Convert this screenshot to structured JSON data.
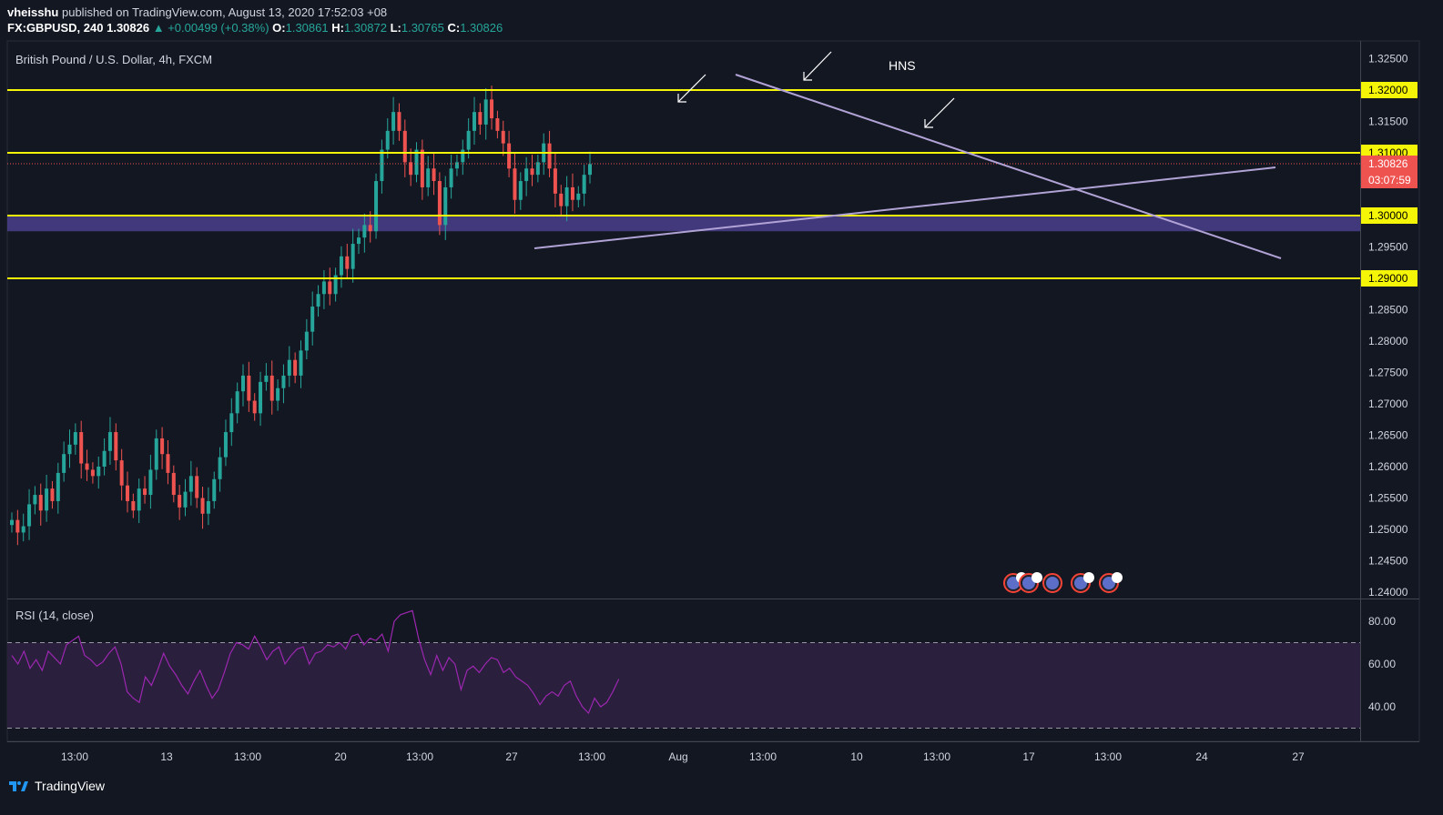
{
  "header": {
    "publisher": "vheisshu",
    "published_text": "published on TradingView.com, August 13, 2020 17:52:03 +08",
    "symbol": "FX:GBPUSD, 240",
    "last": "1.30826",
    "change": "▲ +0.00499 (+0.38%)",
    "o_label": "O:",
    "o": "1.30861",
    "h_label": "H:",
    "h": "1.30872",
    "l_label": "L:",
    "l": "1.30765",
    "c_label": "C:",
    "c": "1.30826"
  },
  "legend": "British Pound / U.S. Dollar, 4h, FXCM",
  "rsi_legend": "RSI (14, close)",
  "annotation": "HNS",
  "footer": {
    "brand": "TradingView"
  },
  "colors": {
    "bg": "#131722",
    "up": "#26a69a",
    "down": "#ef5350",
    "level": "#f5f507",
    "trend": "#b2a3d6",
    "zone": "#4a3f8c",
    "rsi_line": "#9c27b0",
    "rsi_band": "#2a1f3d"
  },
  "chart_data": [
    {
      "type": "candlestick",
      "title": "British Pound / U.S. Dollar, 4h, FXCM",
      "ylim": [
        1.2375,
        1.3275
      ],
      "y_ticks": [
        "1.32500",
        "1.32000",
        "1.31500",
        "1.31000",
        "1.30500",
        "1.30000",
        "1.29500",
        "1.29000",
        "1.28500",
        "1.28000",
        "1.27500",
        "1.27000",
        "1.26500",
        "1.26000",
        "1.25500",
        "1.25000",
        "1.24500",
        "1.24000"
      ],
      "x_ticks": [
        "13:00",
        "13",
        "13:00",
        "20",
        "13:00",
        "27",
        "13:00",
        "Aug",
        "13:00",
        "10",
        "13:00",
        "17",
        "13:00",
        "24",
        "27"
      ],
      "levels": [
        1.32,
        1.31,
        1.3,
        1.29
      ],
      "level_labels": [
        "1.32000",
        "1.31000",
        "1.30000",
        "1.29000"
      ],
      "last_price_label": "1.30826",
      "countdown": "03:07:59",
      "zone": [
        1.2975,
        1.3
      ],
      "close_path": [
        1.2515,
        1.2495,
        1.2505,
        1.254,
        1.2555,
        1.253,
        1.2565,
        1.2545,
        1.259,
        1.262,
        1.2635,
        1.2655,
        1.2605,
        1.2595,
        1.2585,
        1.26,
        1.2625,
        1.2655,
        1.261,
        1.257,
        1.2545,
        1.253,
        1.2565,
        1.2555,
        1.2595,
        1.2645,
        1.262,
        1.259,
        1.2555,
        1.2535,
        1.256,
        1.2585,
        1.255,
        1.2525,
        1.2545,
        1.258,
        1.2615,
        1.2655,
        1.2685,
        1.272,
        1.2745,
        1.2705,
        1.2685,
        1.2735,
        1.2745,
        1.2705,
        1.2725,
        1.2745,
        1.277,
        1.2745,
        1.2785,
        1.2815,
        1.2855,
        1.2875,
        1.2895,
        1.2875,
        1.2905,
        1.2935,
        1.2915,
        1.2955,
        1.2965,
        1.2985,
        1.2975,
        1.3055,
        1.3105,
        1.3135,
        1.3165,
        1.3135,
        1.3085,
        1.3065,
        1.3105,
        1.3045,
        1.3075,
        1.3055,
        1.2985,
        1.3045,
        1.3075,
        1.3085,
        1.3105,
        1.3135,
        1.3165,
        1.3145,
        1.3185,
        1.3155,
        1.3135,
        1.3115,
        1.3075,
        1.3025,
        1.3055,
        1.3075,
        1.3065,
        1.3085,
        1.3115,
        1.3075,
        1.3035,
        1.3015,
        1.3045,
        1.3025,
        1.3035,
        1.3065,
        1.3082
      ],
      "rsi": {
        "title": "RSI (14, close)",
        "ylim": [
          30,
          90
        ],
        "y_ticks": [
          "80.00",
          "60.00",
          "40.00"
        ],
        "bands": [
          70,
          30
        ],
        "values": [
          64,
          60,
          66,
          58,
          62,
          57,
          66,
          63,
          60,
          69,
          71,
          73,
          64,
          62,
          59,
          61,
          65,
          68,
          60,
          47,
          44,
          42,
          54,
          50,
          57,
          65,
          59,
          55,
          50,
          46,
          52,
          57,
          50,
          44,
          48,
          56,
          65,
          70,
          69,
          67,
          73,
          68,
          62,
          66,
          68,
          60,
          64,
          67,
          68,
          60,
          65,
          66,
          69,
          68,
          70,
          67,
          73,
          74,
          69,
          72,
          71,
          74,
          66,
          80,
          83,
          84,
          85,
          72,
          62,
          55,
          64,
          57,
          63,
          60,
          48,
          57,
          59,
          56,
          60,
          63,
          62,
          56,
          58,
          54,
          52,
          50,
          46,
          41,
          45,
          47,
          45,
          50,
          52,
          45,
          40,
          37,
          44,
          40,
          42,
          47,
          53
        ]
      }
    }
  ]
}
